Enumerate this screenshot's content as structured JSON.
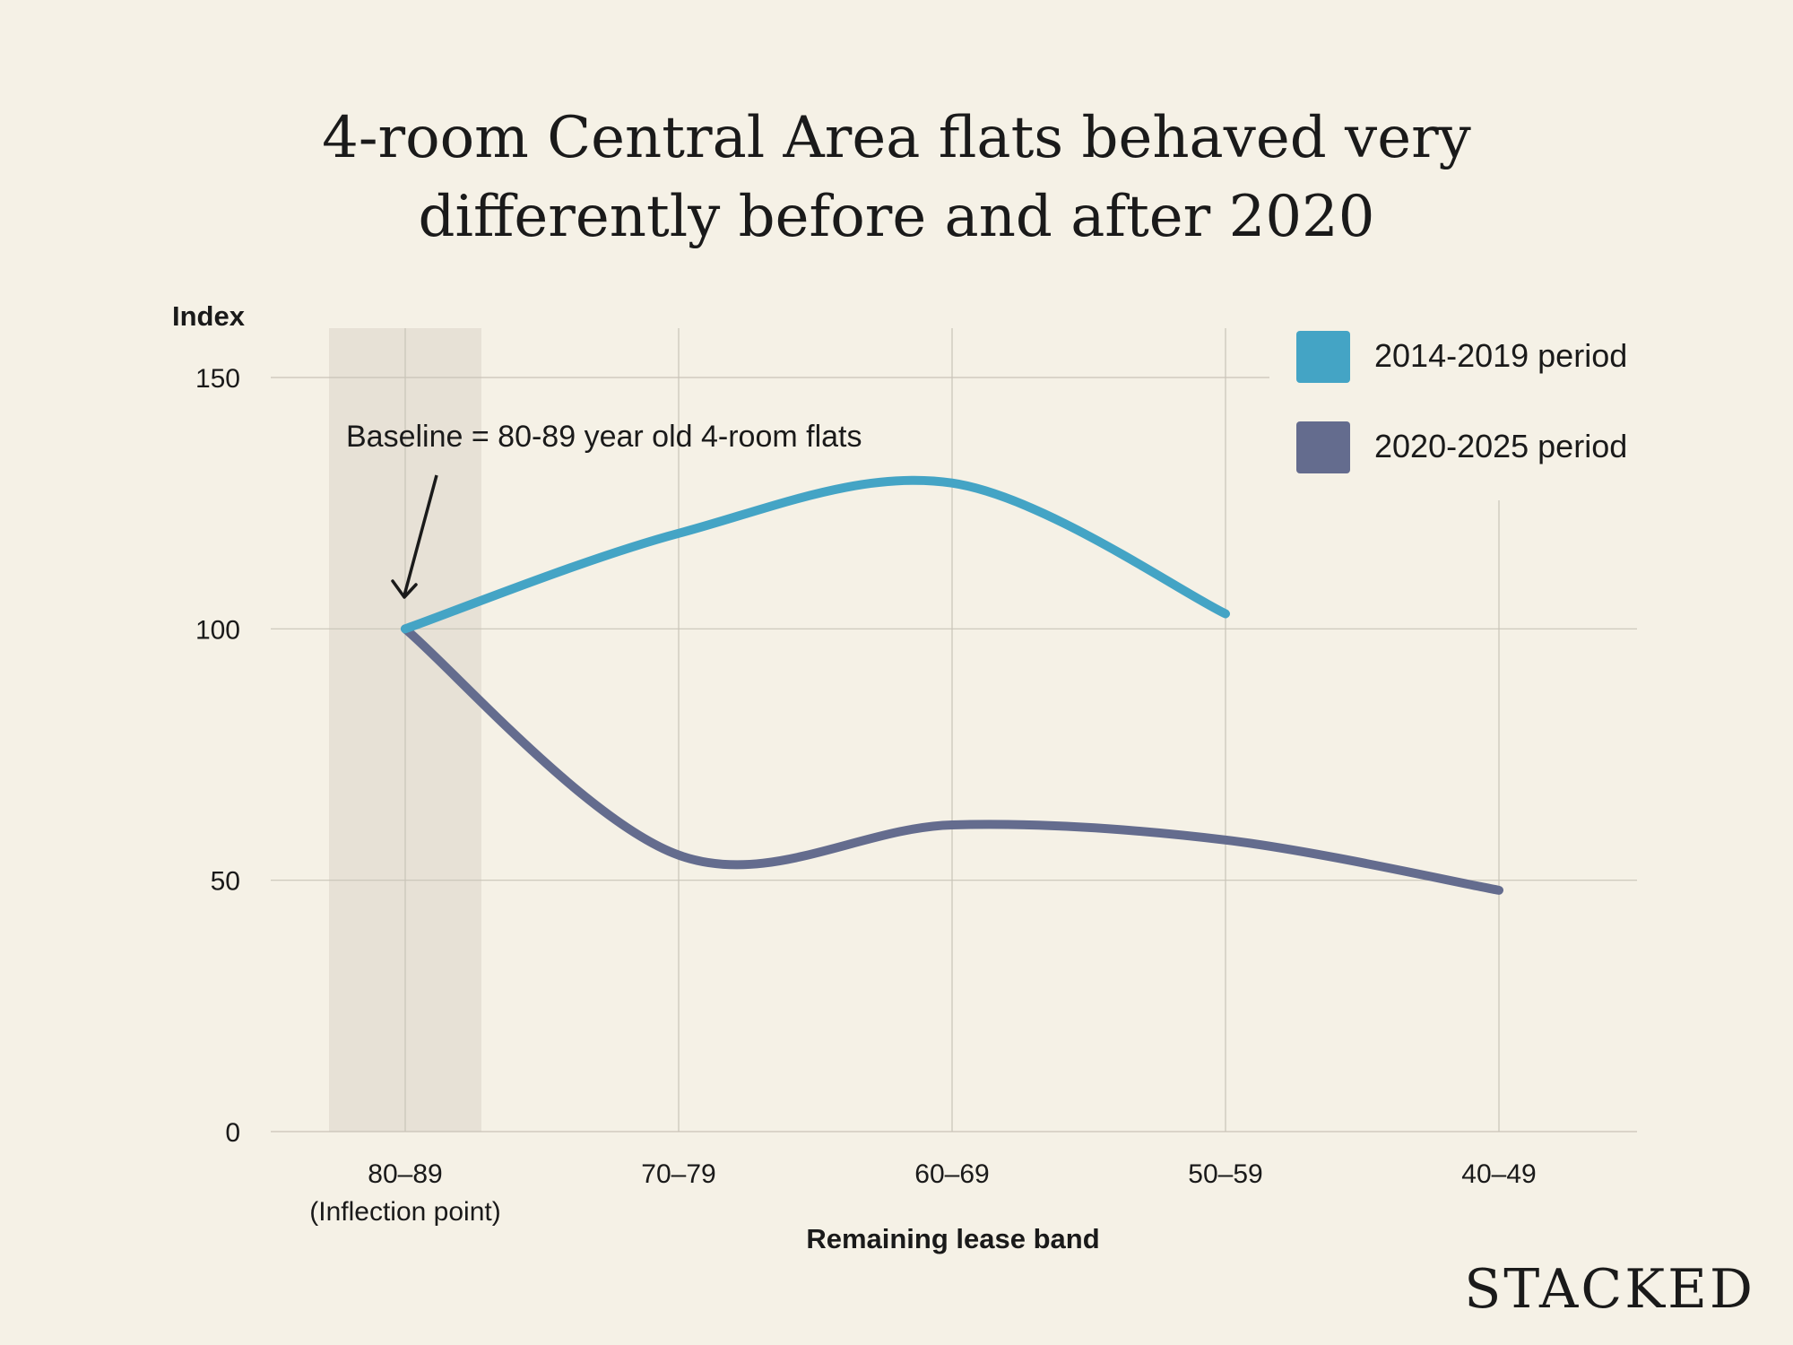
{
  "chart_data": {
    "type": "line",
    "title": "4-room Central Area flats behaved very differently before and after 2020",
    "title_lines": [
      "4-room Central Area flats behaved very",
      "differently before and after 2020"
    ],
    "xlabel": "Remaining lease band",
    "ylabel": "Index",
    "categories": [
      "80–89",
      "70–79",
      "60–69",
      "50–59",
      "40–49"
    ],
    "category_sublabels": [
      "(Inflection point)",
      "",
      "",
      "",
      ""
    ],
    "yticks": [
      0,
      50,
      100,
      150
    ],
    "ylim": [
      0,
      150
    ],
    "grid": true,
    "legend_position": "top-right",
    "highlight_band": "80–89",
    "annotation": {
      "text": "Baseline = 80-89 year old 4-room flats",
      "target_category": "80–89",
      "target_value": 100
    },
    "series": [
      {
        "name": "2014-2019 period",
        "color": "#44a4c5",
        "values": [
          100,
          119,
          129,
          103,
          null
        ]
      },
      {
        "name": "2020-2025 period",
        "color": "#646c8e",
        "values": [
          100,
          55,
          61,
          58,
          48
        ]
      }
    ]
  },
  "brand": {
    "logo_text": "STACKED"
  },
  "colors": {
    "background": "#f5f1e6",
    "highlight_band": "#e7e1d6",
    "text": "#1a1a1a",
    "grid": "#c9c4b8"
  }
}
